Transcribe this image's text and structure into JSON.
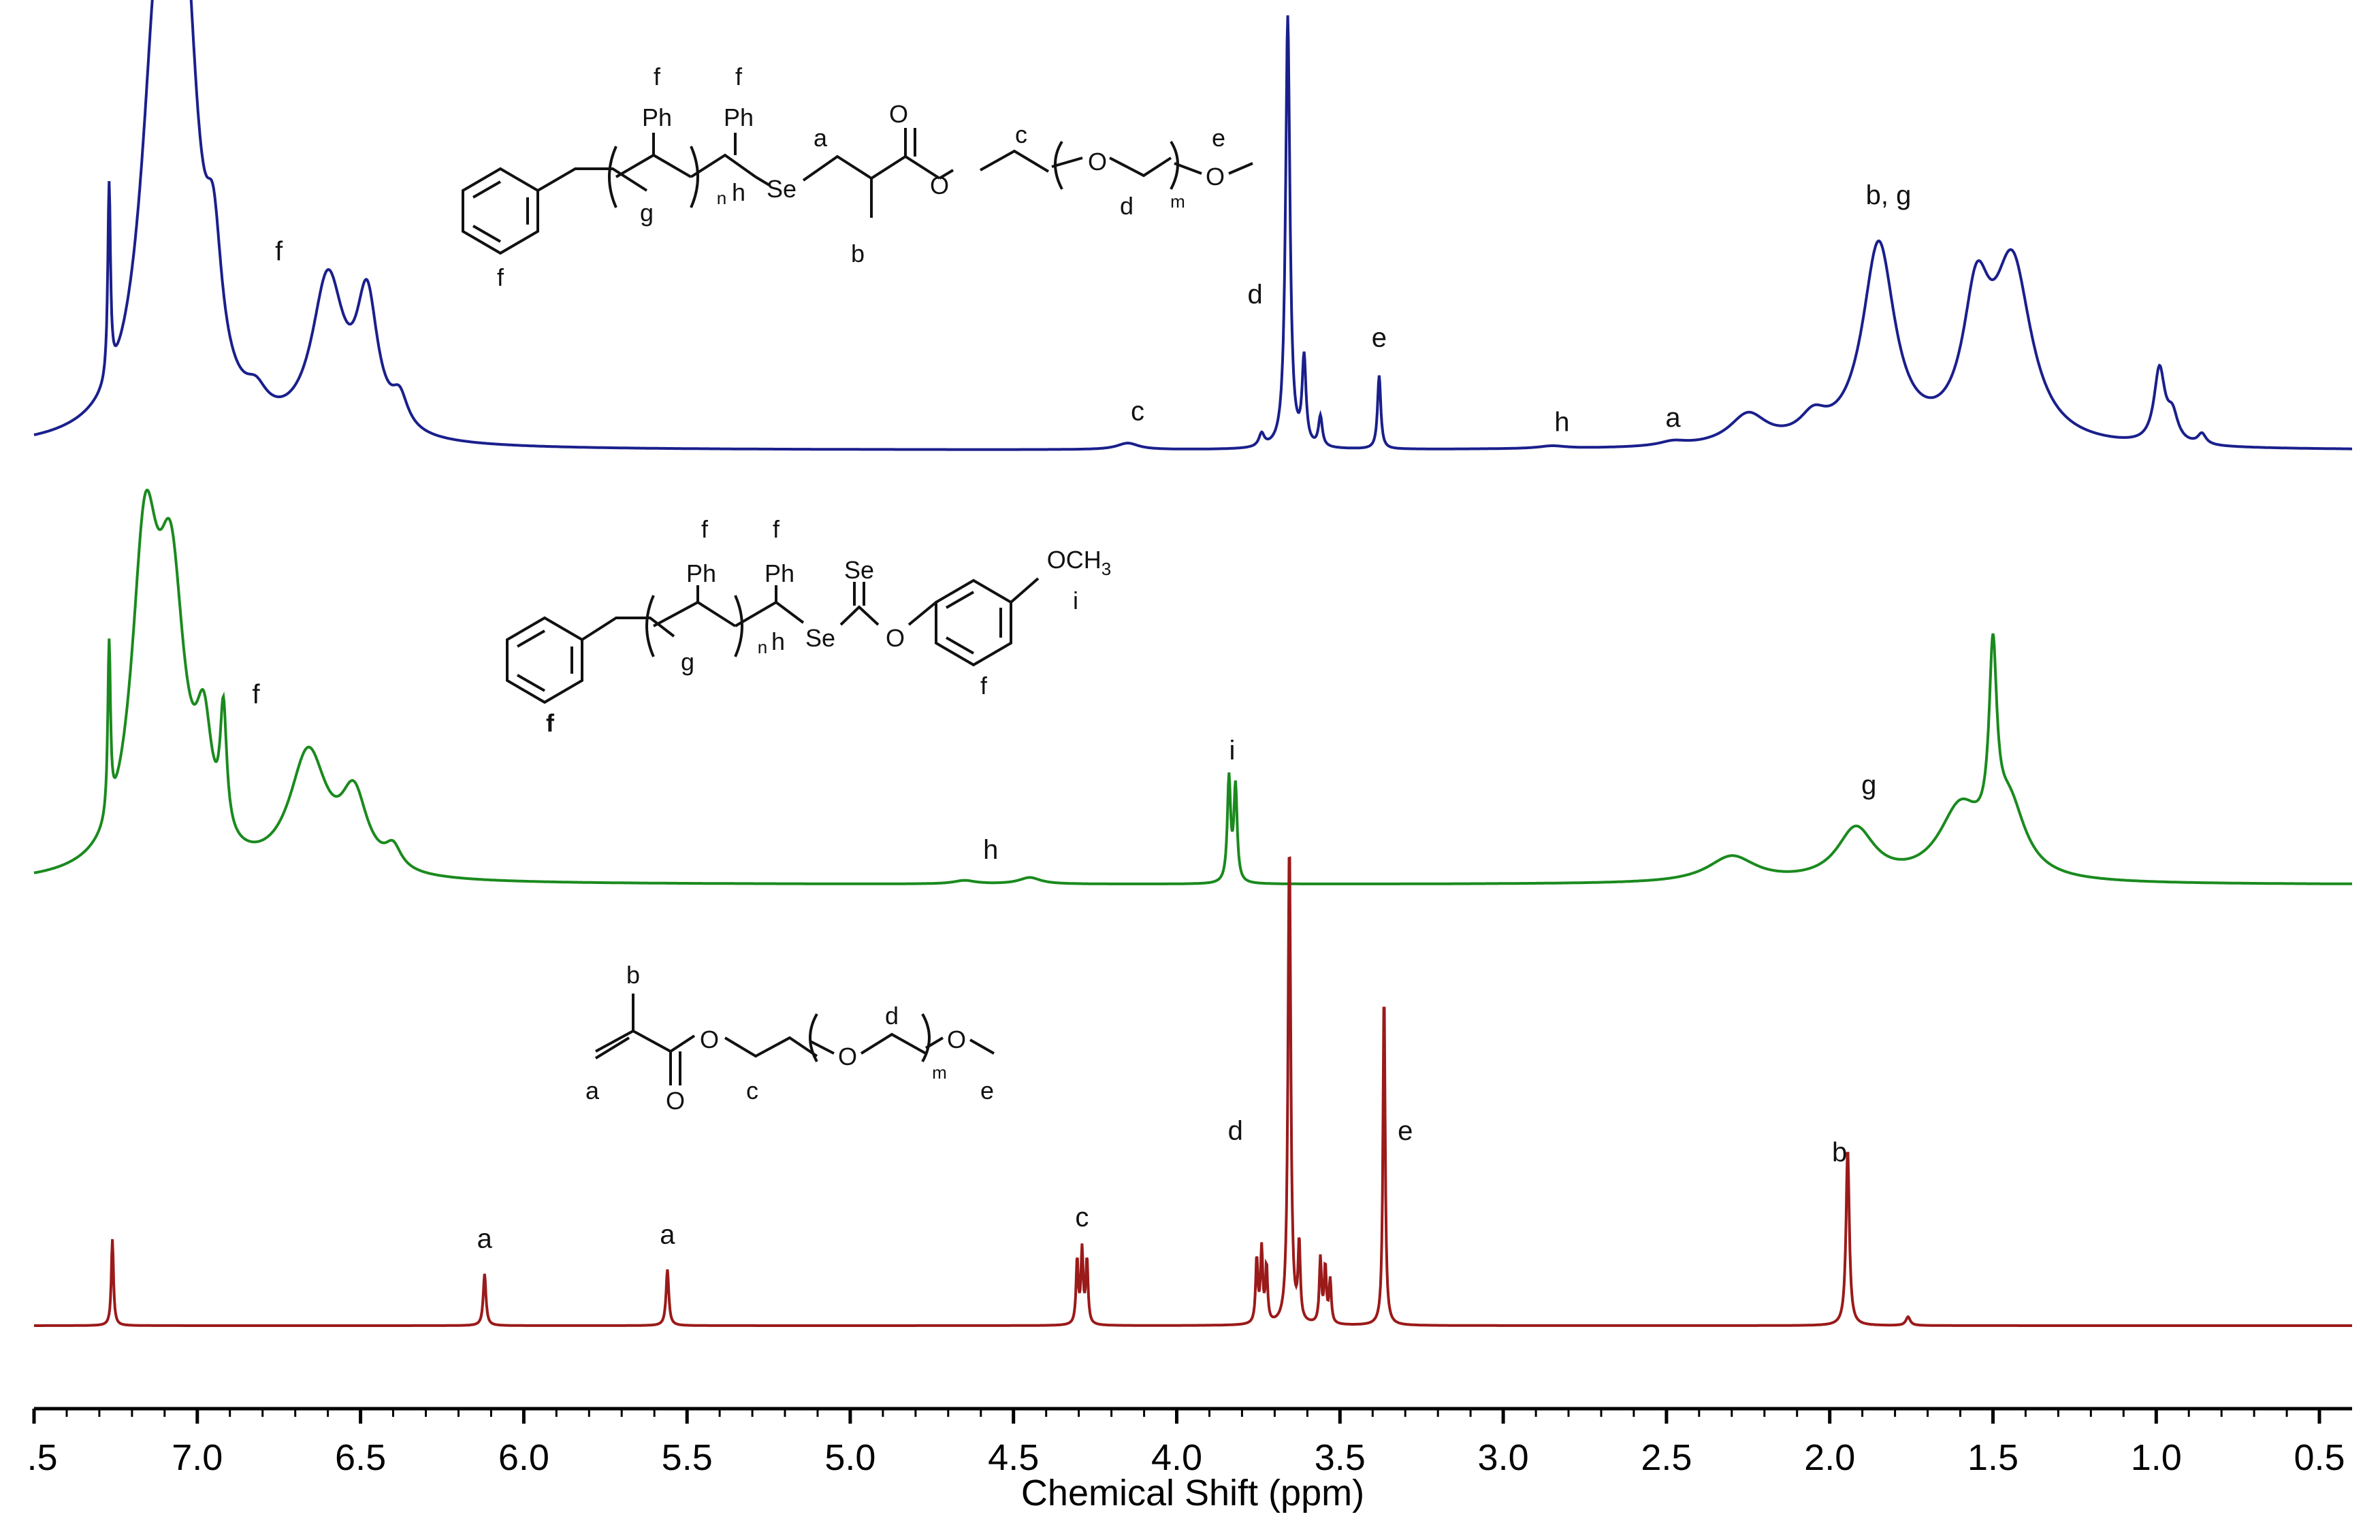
{
  "chart_data": {
    "type": "line",
    "xlabel": "Chemical Shift (ppm)",
    "xlim": [
      7.5,
      0.4
    ],
    "x_ticks": [
      7.0,
      6.5,
      6.0,
      5.5,
      5.0,
      4.5,
      4.0,
      3.5,
      3.0,
      2.5,
      2.0,
      1.5,
      1.0,
      0.5
    ],
    "x_tick_labels": [
      ".5",
      "7.0",
      "6.5",
      "6.0",
      "5.5",
      "5.0",
      "4.5",
      "4.0",
      "3.5",
      "3.0",
      "2.5",
      "2.0",
      "1.5",
      "1.0",
      "0.5"
    ],
    "x_tick_positions": [
      7.5,
      7.0,
      6.5,
      6.0,
      5.5,
      5.0,
      4.5,
      4.0,
      3.5,
      3.0,
      2.5,
      2.0,
      1.5,
      1.0,
      0.5
    ],
    "grid": false,
    "legend": "none",
    "series": [
      {
        "color": "#1a1f8c",
        "peaks": [
          {
            "shift": 7.27,
            "height": 0.45,
            "width": 0.005
          },
          {
            "shift": 7.12,
            "height": 0.92,
            "width": 0.06
          },
          {
            "shift": 7.04,
            "height": 0.88,
            "width": 0.05
          },
          {
            "shift": 6.95,
            "height": 0.28,
            "width": 0.03
          },
          {
            "shift": 6.82,
            "height": 0.05,
            "width": 0.04
          },
          {
            "shift": 6.6,
            "height": 0.36,
            "width": 0.06
          },
          {
            "shift": 6.48,
            "height": 0.3,
            "width": 0.04
          },
          {
            "shift": 6.38,
            "height": 0.07,
            "width": 0.03
          },
          {
            "shift": 4.15,
            "height": 0.015,
            "width": 0.04
          },
          {
            "shift": 3.74,
            "height": 0.03,
            "width": 0.01
          },
          {
            "shift": 3.66,
            "height": 1.0,
            "width": 0.008
          },
          {
            "shift": 3.61,
            "height": 0.2,
            "width": 0.007
          },
          {
            "shift": 3.56,
            "height": 0.07,
            "width": 0.007
          },
          {
            "shift": 3.38,
            "height": 0.17,
            "width": 0.006
          },
          {
            "shift": 2.85,
            "height": 0.006,
            "width": 0.05
          },
          {
            "shift": 2.48,
            "height": 0.01,
            "width": 0.05
          },
          {
            "shift": 2.25,
            "height": 0.07,
            "width": 0.07
          },
          {
            "shift": 2.05,
            "height": 0.05,
            "width": 0.05
          },
          {
            "shift": 1.85,
            "height": 0.46,
            "width": 0.06
          },
          {
            "shift": 1.55,
            "height": 0.3,
            "width": 0.05
          },
          {
            "shift": 1.44,
            "height": 0.4,
            "width": 0.07
          },
          {
            "shift": 0.99,
            "height": 0.17,
            "width": 0.02
          },
          {
            "shift": 0.95,
            "height": 0.06,
            "width": 0.02
          },
          {
            "shift": 0.86,
            "height": 0.025,
            "width": 0.015
          }
        ]
      },
      {
        "color": "#1a8a1e",
        "peaks": [
          {
            "shift": 7.27,
            "height": 0.4,
            "width": 0.005
          },
          {
            "shift": 7.16,
            "height": 0.72,
            "width": 0.05
          },
          {
            "shift": 7.08,
            "height": 0.6,
            "width": 0.05
          },
          {
            "shift": 6.98,
            "height": 0.25,
            "width": 0.03
          },
          {
            "shift": 6.92,
            "height": 0.28,
            "width": 0.012
          },
          {
            "shift": 6.66,
            "height": 0.28,
            "width": 0.07
          },
          {
            "shift": 6.52,
            "height": 0.17,
            "width": 0.05
          },
          {
            "shift": 6.4,
            "height": 0.05,
            "width": 0.03
          },
          {
            "shift": 4.45,
            "height": 0.015,
            "width": 0.04
          },
          {
            "shift": 4.65,
            "height": 0.008,
            "width": 0.04
          },
          {
            "shift": 3.84,
            "height": 0.24,
            "width": 0.006
          },
          {
            "shift": 3.82,
            "height": 0.22,
            "width": 0.006
          },
          {
            "shift": 2.3,
            "height": 0.06,
            "width": 0.09
          },
          {
            "shift": 1.92,
            "height": 0.12,
            "width": 0.07
          },
          {
            "shift": 1.6,
            "height": 0.16,
            "width": 0.08
          },
          {
            "shift": 1.5,
            "height": 0.42,
            "width": 0.014
          },
          {
            "shift": 1.45,
            "height": 0.16,
            "width": 0.06
          }
        ]
      },
      {
        "color": "#9b1a1a",
        "peaks": [
          {
            "shift": 7.26,
            "height": 0.2,
            "width": 0.004
          },
          {
            "shift": 6.12,
            "height": 0.12,
            "width": 0.005
          },
          {
            "shift": 5.56,
            "height": 0.13,
            "width": 0.005
          },
          {
            "shift": 4.305,
            "height": 0.15,
            "width": 0.004
          },
          {
            "shift": 4.29,
            "height": 0.17,
            "width": 0.004
          },
          {
            "shift": 4.275,
            "height": 0.15,
            "width": 0.004
          },
          {
            "shift": 3.755,
            "height": 0.15,
            "width": 0.004
          },
          {
            "shift": 3.74,
            "height": 0.17,
            "width": 0.004
          },
          {
            "shift": 3.725,
            "height": 0.13,
            "width": 0.004
          },
          {
            "shift": 3.655,
            "height": 1.12,
            "width": 0.005
          },
          {
            "shift": 3.625,
            "height": 0.18,
            "width": 0.004
          },
          {
            "shift": 3.56,
            "height": 0.15,
            "width": 0.004
          },
          {
            "shift": 3.545,
            "height": 0.13,
            "width": 0.004
          },
          {
            "shift": 3.53,
            "height": 0.1,
            "width": 0.004
          },
          {
            "shift": 3.365,
            "height": 0.78,
            "width": 0.004
          },
          {
            "shift": 1.945,
            "height": 0.41,
            "width": 0.006
          },
          {
            "shift": 1.76,
            "height": 0.02,
            "width": 0.008
          }
        ]
      }
    ],
    "annotations": [
      {
        "series": 0,
        "text": "f",
        "shift": 6.75,
        "height": 0.44
      },
      {
        "series": 0,
        "text": "c",
        "shift": 4.12,
        "height": 0.07
      },
      {
        "series": 0,
        "text": "d",
        "shift": 3.76,
        "height": 0.34
      },
      {
        "series": 0,
        "text": "e",
        "shift": 3.38,
        "height": 0.24
      },
      {
        "series": 0,
        "text": "h",
        "shift": 2.82,
        "height": 0.045
      },
      {
        "series": 0,
        "text": "a",
        "shift": 2.48,
        "height": 0.055
      },
      {
        "series": 0,
        "text": "b, g",
        "shift": 1.82,
        "height": 0.57
      },
      {
        "series": 1,
        "text": "f",
        "shift": 6.82,
        "height": 0.42
      },
      {
        "series": 1,
        "text": "h",
        "shift": 4.57,
        "height": 0.06
      },
      {
        "series": 1,
        "text": "i",
        "shift": 3.83,
        "height": 0.29
      },
      {
        "series": 1,
        "text": "g",
        "shift": 1.88,
        "height": 0.21
      },
      {
        "series": 2,
        "text": "a",
        "shift": 6.12,
        "height": 0.18
      },
      {
        "series": 2,
        "text": "a",
        "shift": 5.56,
        "height": 0.19
      },
      {
        "series": 2,
        "text": "c",
        "shift": 4.29,
        "height": 0.23
      },
      {
        "series": 2,
        "text": "d",
        "shift": 3.82,
        "height": 0.43
      },
      {
        "series": 2,
        "text": "e",
        "shift": 3.3,
        "height": 0.43
      },
      {
        "series": 2,
        "text": "b",
        "shift": 1.97,
        "height": 0.38
      }
    ]
  },
  "structures": {
    "top": {
      "labels": [
        "f",
        "f",
        "Ph",
        "Ph",
        "a",
        "O",
        "c",
        "e",
        "n",
        "g",
        "h",
        "Se",
        "O",
        "O",
        "d",
        "m",
        "O",
        "b",
        "f"
      ]
    },
    "middle": {
      "labels": [
        "f",
        "f",
        "Ph",
        "Ph",
        "Se",
        "OCH",
        "3",
        "i",
        "n",
        "g",
        "h",
        "Se",
        "O",
        "f",
        "f"
      ]
    },
    "bottom": {
      "labels": [
        "b",
        "d",
        "O",
        "O",
        "m",
        "O",
        "a",
        "O",
        "c",
        "e"
      ]
    }
  }
}
